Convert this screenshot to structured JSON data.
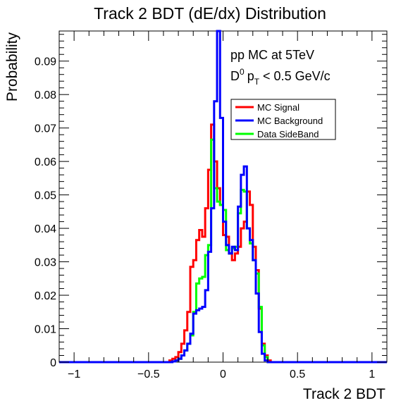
{
  "chart_data": {
    "type": "line",
    "title": "Track 2 BDT (dE/dx) Distribution",
    "xlabel": "Track 2 BDT",
    "ylabel": "Probability",
    "xlim": [
      -1.1,
      1.1
    ],
    "ylim": [
      0,
      0.099
    ],
    "xticks": [
      -1,
      -0.5,
      0,
      0.5,
      1
    ],
    "xtick_labels": [
      "−1",
      "−0.5",
      "0",
      "0.5",
      "1"
    ],
    "yticks": [
      0,
      0.01,
      0.02,
      0.03,
      0.04,
      0.05,
      0.06,
      0.07,
      0.08,
      0.09
    ],
    "ytick_labels": [
      "0",
      "0.01",
      "0.02",
      "0.03",
      "0.04",
      "0.05",
      "0.06",
      "0.07",
      "0.08",
      "0.09"
    ],
    "grid": false,
    "legend_position": "top-right",
    "annotations": {
      "line1": "pp MC at 5TeV",
      "line2_main": "D",
      "line2_sup": "0",
      "line2_p": "p",
      "line2_sub": "T",
      "line2_rest": " < 0.5 GeV/c"
    },
    "series": [
      {
        "name": "MC Signal",
        "color": "#ff0000",
        "x": [
          -1.1,
          -0.36,
          -0.34,
          -0.32,
          -0.3,
          -0.28,
          -0.26,
          -0.24,
          -0.22,
          -0.2,
          -0.18,
          -0.16,
          -0.14,
          -0.12,
          -0.1,
          -0.08,
          -0.06,
          -0.04,
          -0.02,
          0.0,
          0.02,
          0.04,
          0.06,
          0.08,
          0.1,
          0.12,
          0.14,
          0.16,
          0.18,
          0.2,
          0.22,
          0.24,
          0.26,
          0.28,
          0.3,
          0.32,
          1.1
        ],
        "y": [
          0,
          0.0005,
          0.001,
          0.0015,
          0.003,
          0.0055,
          0.0095,
          0.015,
          0.0285,
          0.0305,
          0.0365,
          0.0395,
          0.0375,
          0.046,
          0.0575,
          0.071,
          0.06,
          0.052,
          0.047,
          0.038,
          0.0375,
          0.0325,
          0.0305,
          0.0325,
          0.0345,
          0.04,
          0.042,
          0.051,
          0.047,
          0.0345,
          0.0275,
          0.016,
          0.0055,
          0.002,
          0.0005,
          0,
          0
        ]
      },
      {
        "name": "MC Background",
        "color": "#0000ff",
        "x": [
          -1.1,
          -0.34,
          -0.32,
          -0.3,
          -0.28,
          -0.26,
          -0.24,
          -0.22,
          -0.2,
          -0.18,
          -0.16,
          -0.14,
          -0.12,
          -0.1,
          -0.08,
          -0.06,
          -0.04,
          -0.02,
          0.0,
          0.02,
          0.04,
          0.06,
          0.08,
          0.1,
          0.12,
          0.14,
          0.16,
          0.18,
          0.2,
          0.22,
          0.24,
          0.26,
          0.28,
          0.3,
          0.32,
          1.1
        ],
        "y": [
          0,
          0.0002,
          0.0005,
          0.001,
          0.002,
          0.0035,
          0.0055,
          0.0085,
          0.0145,
          0.0155,
          0.016,
          0.0165,
          0.0215,
          0.033,
          0.046,
          0.078,
          0.099,
          0.073,
          0.042,
          0.035,
          0.0325,
          0.0345,
          0.0335,
          0.0465,
          0.056,
          0.0585,
          0.04,
          0.0365,
          0.0305,
          0.0205,
          0.009,
          0.0025,
          0.0005,
          0,
          0,
          0
        ]
      },
      {
        "name": "Data SideBand",
        "color": "#00ff00",
        "x": [
          -1.1,
          -0.34,
          -0.32,
          -0.3,
          -0.28,
          -0.26,
          -0.24,
          -0.22,
          -0.2,
          -0.18,
          -0.16,
          -0.14,
          -0.12,
          -0.1,
          -0.08,
          -0.06,
          -0.04,
          -0.02,
          0.0,
          0.02,
          0.04,
          0.06,
          0.08,
          0.1,
          0.12,
          0.14,
          0.16,
          0.18,
          0.2,
          0.22,
          0.24,
          0.26,
          0.28,
          0.3,
          0.32,
          1.1
        ],
        "y": [
          0,
          0.0002,
          0.0005,
          0.001,
          0.002,
          0.0035,
          0.0055,
          0.008,
          0.015,
          0.0235,
          0.025,
          0.0255,
          0.032,
          0.035,
          0.0665,
          0.052,
          0.048,
          0.047,
          0.0455,
          0.0335,
          0.0325,
          0.034,
          0.0345,
          0.0445,
          0.0515,
          0.051,
          0.04,
          0.0355,
          0.0305,
          0.0265,
          0.0165,
          0.005,
          0.0015,
          0,
          0,
          0
        ]
      }
    ]
  }
}
